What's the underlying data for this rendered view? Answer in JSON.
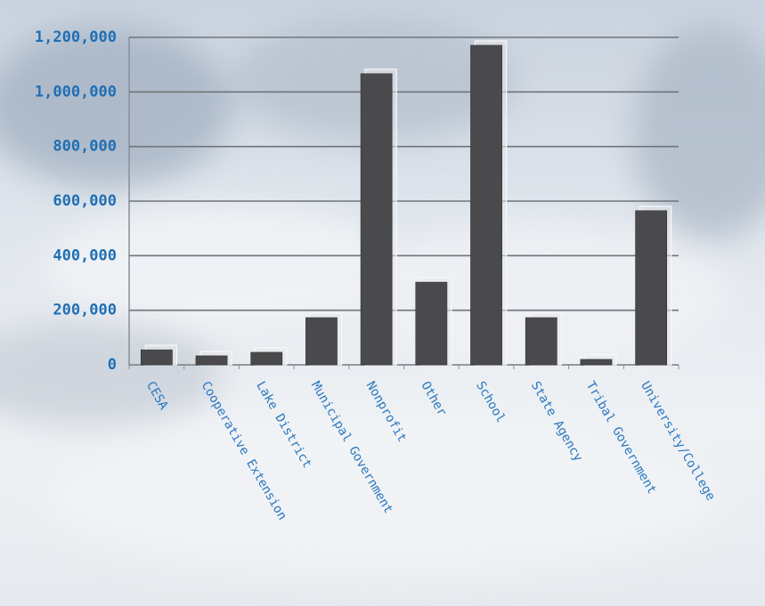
{
  "chart_data": {
    "type": "bar",
    "categories": [
      "CESA",
      "Cooperative Extension",
      "Lake District",
      "Municipal Government",
      "Nonprofit",
      "Other",
      "School",
      "State Agency",
      "Tribal Government",
      "University/College"
    ],
    "values": [
      55000,
      33000,
      46000,
      173000,
      1067000,
      303000,
      1171000,
      173000,
      20000,
      565000
    ],
    "color": "#4a4a4c",
    "ylim": [
      0,
      1200000
    ],
    "yticks": [
      0,
      {
        "value": 200000,
        "label": "200,000"
      },
      {
        "value": 400000,
        "label": "400,000"
      },
      {
        "value": 600000,
        "label": "600,000"
      },
      {
        "value": 800000,
        "label": "800,000"
      },
      {
        "value": 1000000,
        "label": "1,000,000"
      },
      {
        "value": 1200000,
        "label": "1,200,000"
      }
    ],
    "grid": true
  }
}
